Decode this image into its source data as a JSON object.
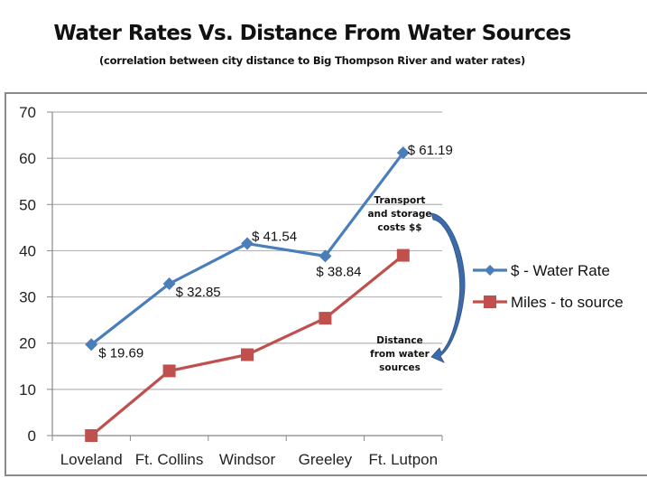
{
  "chart_data": {
    "type": "line",
    "title": "Water Rates Vs. Distance From Water Sources",
    "subtitle": "(correlation  between city distance to Big Thompson  River and water rates)",
    "xlabel": "",
    "ylabel": "",
    "categories": [
      "Loveland",
      "Ft. Collins",
      "Windsor",
      "Greeley",
      "Ft. Lutpon"
    ],
    "ylim": [
      0,
      70
    ],
    "yticks": [
      0,
      10,
      20,
      30,
      40,
      50,
      60,
      70
    ],
    "grid": true,
    "legend_position": "right",
    "series": [
      {
        "name": "$ - Water Rate",
        "color": "#4a7ebb",
        "marker": "diamond",
        "values": [
          19.69,
          32.85,
          41.54,
          38.84,
          61.19
        ],
        "labels": [
          "$ 19.69",
          "$ 32.85",
          "$ 41.54",
          "$ 38.84",
          "$ 61.19"
        ]
      },
      {
        "name": "Miles - to source",
        "color": "#c0504d",
        "marker": "square",
        "values": [
          0,
          14,
          17.5,
          25.4,
          39
        ]
      }
    ],
    "annotations": [
      {
        "text": [
          "Transport",
          "and storage",
          "costs $$"
        ]
      },
      {
        "text": [
          "Distance",
          "from water",
          "sources"
        ]
      }
    ],
    "arrow_color": "#3d6aa8"
  }
}
